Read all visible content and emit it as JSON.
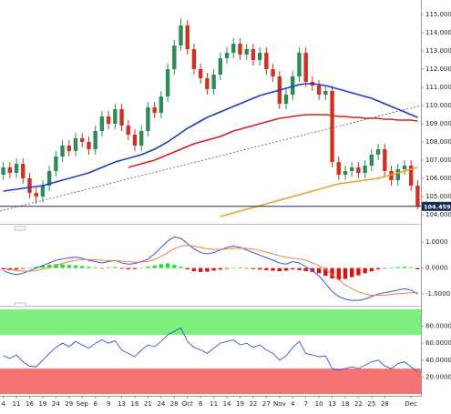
{
  "chart_data": [
    {
      "type": "candlestick",
      "categories": [
        "4",
        null,
        "11",
        null,
        "16",
        null,
        "19",
        null,
        "24",
        null,
        "29",
        null,
        "Sep",
        null,
        "6",
        null,
        "9",
        null,
        "13",
        null,
        "16",
        null,
        "21",
        null,
        "24",
        null,
        "28",
        null,
        "Oct",
        null,
        "6",
        null,
        "11",
        null,
        "14",
        null,
        "19",
        null,
        "22",
        null,
        "27",
        null,
        "Nov",
        null,
        "4",
        null,
        "7",
        null,
        "10",
        null,
        "13",
        null,
        "18",
        null,
        "22",
        null,
        "25",
        null,
        "28",
        null,
        null,
        null,
        "Dec",
        null
      ],
      "open": [
        106.2,
        106.6,
        106.3,
        106.8,
        106.0,
        105.2,
        105.0,
        105.6,
        106.4,
        107.2,
        107.8,
        107.5,
        108.2,
        108.0,
        107.6,
        108.6,
        109.4,
        109.0,
        109.8,
        108.9,
        108.4,
        107.8,
        108.6,
        109.9,
        109.6,
        110.5,
        112.0,
        113.3,
        114.4,
        113.1,
        112.0,
        111.5,
        110.9,
        111.7,
        112.6,
        112.9,
        113.4,
        112.8,
        113.1,
        112.5,
        112.9,
        112.0,
        111.6,
        110.1,
        110.6,
        111.6,
        112.9,
        111.3,
        111.1,
        110.6,
        110.8,
        106.9,
        106.2,
        106.4,
        106.6,
        106.3,
        106.7,
        107.3,
        107.6,
        106.4,
        105.9,
        106.5,
        106.7,
        105.6
      ],
      "high": [
        106.9,
        106.9,
        107.1,
        107.1,
        106.3,
        105.5,
        105.9,
        106.7,
        107.5,
        108.1,
        108.1,
        108.5,
        108.5,
        108.3,
        108.9,
        109.7,
        109.7,
        110.1,
        110.1,
        109.2,
        108.7,
        108.9,
        110.2,
        110.2,
        110.8,
        112.3,
        113.6,
        114.8,
        114.7,
        113.4,
        112.3,
        111.8,
        112.0,
        112.9,
        113.2,
        113.7,
        113.7,
        113.4,
        113.4,
        113.2,
        113.2,
        112.3,
        111.9,
        110.9,
        111.9,
        113.2,
        113.2,
        111.6,
        111.4,
        111.1,
        111.1,
        107.2,
        106.7,
        106.9,
        106.9,
        107.0,
        107.6,
        107.9,
        107.9,
        106.7,
        106.8,
        107.0,
        107.0,
        105.9
      ],
      "low": [
        105.9,
        106.0,
        106.0,
        105.7,
        104.9,
        104.6,
        104.7,
        105.3,
        106.1,
        106.9,
        107.2,
        107.2,
        107.7,
        107.3,
        107.3,
        108.3,
        108.7,
        108.7,
        108.6,
        108.1,
        107.5,
        107.5,
        108.3,
        109.3,
        109.3,
        110.2,
        111.7,
        113.0,
        112.8,
        111.7,
        111.2,
        110.6,
        110.6,
        111.4,
        112.3,
        112.6,
        112.5,
        112.5,
        112.2,
        112.2,
        111.7,
        111.3,
        109.8,
        109.8,
        110.3,
        111.3,
        111.0,
        110.8,
        110.3,
        110.3,
        106.6,
        105.9,
        105.9,
        106.1,
        106.0,
        106.0,
        106.4,
        107.0,
        106.1,
        105.6,
        105.6,
        106.2,
        105.3,
        104.3
      ],
      "close": [
        106.6,
        106.3,
        106.8,
        106.0,
        105.2,
        105.0,
        105.6,
        106.4,
        107.2,
        107.8,
        107.5,
        108.2,
        108.0,
        107.6,
        108.6,
        109.4,
        109.0,
        109.8,
        108.9,
        108.4,
        107.8,
        108.6,
        109.9,
        109.6,
        110.5,
        112.0,
        113.3,
        114.4,
        113.1,
        112.0,
        111.5,
        110.9,
        111.7,
        112.6,
        112.9,
        113.4,
        112.8,
        113.1,
        112.5,
        112.9,
        112.0,
        111.6,
        110.1,
        110.6,
        111.6,
        112.9,
        111.3,
        111.1,
        110.6,
        110.8,
        106.9,
        106.2,
        106.4,
        106.6,
        106.3,
        106.7,
        107.3,
        107.6,
        106.4,
        105.9,
        106.5,
        106.7,
        105.6,
        104.46
      ],
      "up_color": "#2e8b57",
      "down_color": "#cc3322",
      "series": [
        {
          "color": "#1e3cc8",
          "values": [
            105.3,
            105.35,
            105.4,
            105.45,
            105.5,
            105.55,
            105.6,
            105.7,
            105.8,
            105.9,
            106.0,
            106.1,
            106.2,
            106.3,
            106.45,
            106.6,
            106.75,
            106.9,
            107.0,
            107.1,
            107.2,
            107.3,
            107.45,
            107.6,
            107.8,
            108.0,
            108.25,
            108.5,
            108.75,
            108.95,
            109.15,
            109.35,
            109.5,
            109.65,
            109.8,
            109.95,
            110.1,
            110.25,
            110.4,
            110.55,
            110.65,
            110.75,
            110.85,
            110.95,
            111.05,
            111.15,
            111.2,
            111.2,
            111.15,
            111.1,
            111.0,
            110.9,
            110.8,
            110.7,
            110.6,
            110.5,
            110.4,
            110.25,
            110.1,
            109.95,
            109.8,
            109.65,
            109.5,
            109.35
          ]
        },
        {
          "color": "#d62020",
          "values": [
            null,
            null,
            null,
            null,
            null,
            null,
            null,
            null,
            null,
            null,
            null,
            null,
            null,
            null,
            null,
            null,
            null,
            null,
            null,
            106.6,
            106.7,
            106.8,
            106.9,
            107.0,
            107.15,
            107.3,
            107.45,
            107.6,
            107.75,
            107.9,
            108.0,
            108.1,
            108.2,
            108.3,
            108.45,
            108.6,
            108.7,
            108.8,
            108.9,
            109.0,
            109.1,
            109.2,
            109.3,
            109.35,
            109.4,
            109.45,
            109.5,
            109.5,
            109.5,
            109.5,
            109.45,
            109.4,
            109.4,
            109.35,
            109.35,
            109.3,
            109.3,
            109.3,
            109.25,
            109.25,
            109.2,
            109.2,
            109.2,
            109.15
          ]
        },
        {
          "color": "#f5a020",
          "values": [
            null,
            null,
            null,
            null,
            null,
            null,
            null,
            null,
            null,
            null,
            null,
            null,
            null,
            null,
            null,
            null,
            null,
            null,
            null,
            null,
            null,
            null,
            null,
            null,
            null,
            null,
            null,
            null,
            null,
            null,
            null,
            null,
            null,
            103.9,
            104.0,
            104.1,
            104.2,
            104.3,
            104.4,
            104.5,
            104.6,
            104.7,
            104.8,
            104.9,
            105.0,
            105.1,
            105.2,
            105.3,
            105.4,
            105.5,
            105.6,
            105.7,
            105.75,
            105.8,
            105.85,
            105.9,
            105.95,
            106.0,
            106.1,
            106.2,
            106.3,
            106.4,
            106.5,
            106.6
          ]
        }
      ],
      "trendline": {
        "values": [
          104.2,
          110.0
        ],
        "color": "#555555"
      },
      "last_price": 104.4598,
      "ylim": [
        103.8,
        115.3
      ],
      "yticks": [
        {
          "value": 104,
          "label": "104.0000"
        },
        {
          "value": 105,
          "label": "105.0000"
        },
        {
          "value": 106,
          "label": "106.0000"
        },
        {
          "value": 107,
          "label": "107.0000"
        },
        {
          "value": 108,
          "label": "108.0000"
        },
        {
          "value": 109,
          "label": "109.0000"
        },
        {
          "value": 110,
          "label": "110.0000"
        },
        {
          "value": 111,
          "label": "111.0000"
        },
        {
          "value": 112,
          "label": "112.0000"
        },
        {
          "value": 113,
          "label": "113.0000"
        },
        {
          "value": 114,
          "label": "114.0000"
        },
        {
          "value": 115,
          "label": "115.0000"
        }
      ]
    },
    {
      "type": "macd",
      "histogram": [
        -0.05,
        -0.08,
        -0.06,
        -0.03,
        0.02,
        0.05,
        0.1,
        0.13,
        0.15,
        0.14,
        0.12,
        0.1,
        0.08,
        0.05,
        0.03,
        -0.02,
        0.03,
        0.04,
        -0.03,
        -0.05,
        -0.04,
        0.02,
        0.06,
        0.1,
        0.15,
        0.18,
        0.12,
        0.05,
        -0.05,
        -0.12,
        -0.15,
        -0.14,
        -0.1,
        -0.06,
        -0.03,
        0.02,
        0.03,
        -0.02,
        -0.04,
        -0.06,
        -0.08,
        -0.1,
        -0.12,
        -0.1,
        -0.05,
        -0.08,
        -0.12,
        -0.15,
        -0.2,
        -0.3,
        -0.4,
        -0.45,
        -0.42,
        -0.35,
        -0.28,
        -0.2,
        -0.12,
        -0.05,
        -0.02,
        0.02,
        0.04,
        0.05,
        0.03,
        -0.05
      ],
      "up_color": "#22dd22",
      "down_color": "#dd1111",
      "series": [
        {
          "color": "#3355dd",
          "values": [
            -0.1,
            -0.2,
            -0.25,
            -0.2,
            -0.1,
            0.0,
            0.1,
            0.2,
            0.3,
            0.35,
            0.4,
            0.42,
            0.38,
            0.3,
            0.25,
            0.2,
            0.25,
            0.3,
            0.2,
            0.15,
            0.18,
            0.25,
            0.35,
            0.55,
            0.8,
            1.05,
            1.2,
            1.15,
            0.95,
            0.75,
            0.6,
            0.55,
            0.6,
            0.7,
            0.8,
            0.85,
            0.8,
            0.7,
            0.6,
            0.5,
            0.4,
            0.3,
            0.2,
            0.15,
            0.25,
            0.2,
            0.05,
            -0.1,
            -0.3,
            -0.6,
            -0.9,
            -1.1,
            -1.2,
            -1.25,
            -1.25,
            -1.2,
            -1.1,
            -1.0,
            -0.95,
            -0.9,
            -0.85,
            -0.8,
            -0.85,
            -1.0
          ]
        },
        {
          "color": "#f08040",
          "values": [
            0.0,
            -0.05,
            -0.1,
            -0.12,
            -0.12,
            -0.1,
            -0.05,
            0.02,
            0.1,
            0.18,
            0.25,
            0.3,
            0.33,
            0.33,
            0.32,
            0.3,
            0.28,
            0.28,
            0.27,
            0.25,
            0.23,
            0.23,
            0.26,
            0.33,
            0.45,
            0.6,
            0.75,
            0.85,
            0.88,
            0.85,
            0.8,
            0.75,
            0.72,
            0.72,
            0.74,
            0.76,
            0.77,
            0.76,
            0.73,
            0.68,
            0.62,
            0.55,
            0.48,
            0.42,
            0.38,
            0.35,
            0.3,
            0.2,
            0.1,
            -0.05,
            -0.25,
            -0.45,
            -0.65,
            -0.8,
            -0.92,
            -1.0,
            -1.05,
            -1.05,
            -1.05,
            -1.02,
            -1.0,
            -0.97,
            -0.95,
            -0.95
          ]
        }
      ],
      "ylim": [
        -1.35,
        1.5
      ],
      "yticks": [
        {
          "value": 1,
          "label": "1.0000"
        },
        {
          "value": 0,
          "label": "0.0000"
        },
        {
          "value": -1,
          "label": "-1.0000"
        }
      ]
    },
    {
      "type": "line",
      "bands": [
        {
          "range": [
            70,
            100
          ],
          "color": "#7def7d"
        },
        {
          "range": [
            0,
            30
          ],
          "color": "#f47272"
        }
      ],
      "series": [
        {
          "color": "#3355cc",
          "values": [
            45,
            42,
            46,
            38,
            33,
            32,
            40,
            48,
            55,
            60,
            56,
            62,
            58,
            54,
            60,
            64,
            60,
            63,
            52,
            48,
            44,
            52,
            58,
            56,
            62,
            70,
            74,
            78,
            62,
            55,
            52,
            48,
            54,
            60,
            62,
            64,
            58,
            60,
            55,
            58,
            52,
            48,
            40,
            45,
            55,
            62,
            48,
            46,
            44,
            45,
            30,
            28,
            30,
            32,
            30,
            34,
            38,
            40,
            33,
            30,
            36,
            38,
            32,
            26
          ]
        }
      ],
      "ylim": [
        0,
        100
      ],
      "yticks": [
        {
          "value": 80,
          "label": "80.0000"
        },
        {
          "value": 60,
          "label": "60.0000"
        },
        {
          "value": 40,
          "label": "40.0000"
        },
        {
          "value": 20,
          "label": "20.0000"
        }
      ]
    }
  ]
}
